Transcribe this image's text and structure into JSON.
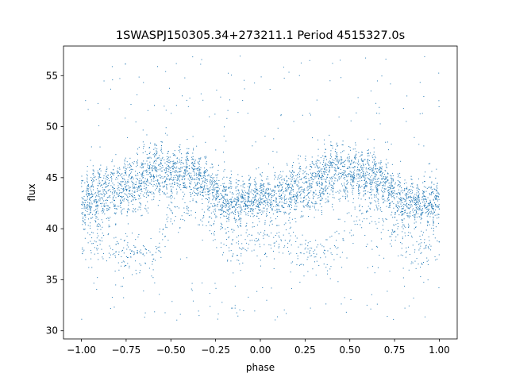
{
  "chart_data": {
    "type": "scatter",
    "title": "1SWASPJ150305.34+273211.1 Period 4515327.0s",
    "xlabel": "phase",
    "ylabel": "flux",
    "xlim": [
      -1.1,
      1.1
    ],
    "ylim": [
      29.2,
      57.9
    ],
    "x_ticks": [
      -1.0,
      -0.75,
      -0.5,
      -0.25,
      0.0,
      0.25,
      0.5,
      0.75,
      1.0
    ],
    "x_tick_labels": [
      "−1.00",
      "−0.75",
      "−0.50",
      "−0.25",
      "0.00",
      "0.25",
      "0.50",
      "0.75",
      "1.00"
    ],
    "y_ticks": [
      30,
      35,
      40,
      45,
      50,
      55
    ],
    "y_tick_labels": [
      "30",
      "35",
      "40",
      "45",
      "50",
      "55"
    ],
    "grid": false,
    "legend": "none",
    "point_color": "#1f77b4",
    "series": [
      {
        "description_of_trend": "phase-folded light curve, mirrored at phase 0",
        "envelope_upper": {
          "phase": [
            -1.0,
            -0.9,
            -0.8,
            -0.7,
            -0.6,
            -0.5,
            -0.4,
            -0.3,
            -0.2,
            -0.1,
            0.0,
            0.1,
            0.2,
            0.3,
            0.4,
            0.5,
            0.6,
            0.7,
            0.8,
            0.9,
            1.0
          ],
          "flux": [
            45.0,
            45.8,
            46.5,
            47.5,
            48.5,
            48.0,
            47.8,
            46.5,
            45.0,
            44.5,
            45.0,
            45.8,
            46.5,
            47.5,
            48.5,
            48.0,
            47.8,
            46.5,
            45.0,
            44.5,
            45.0
          ]
        },
        "envelope_center": {
          "phase": [
            -1.0,
            -0.9,
            -0.8,
            -0.7,
            -0.6,
            -0.5,
            -0.4,
            -0.3,
            -0.2,
            -0.1,
            0.0,
            0.1,
            0.2,
            0.3,
            0.4,
            0.5,
            0.6,
            0.7,
            0.8,
            0.9,
            1.0
          ],
          "flux": [
            42.5,
            43.2,
            43.8,
            44.5,
            45.5,
            45.5,
            45.6,
            44.5,
            42.5,
            42.5,
            43.0,
            43.2,
            43.8,
            44.5,
            45.5,
            45.5,
            45.6,
            44.5,
            42.5,
            42.5,
            42.5
          ]
        },
        "envelope_lower": {
          "phase": [
            -1.0,
            -0.9,
            -0.8,
            -0.7,
            -0.6,
            -0.5,
            -0.4,
            -0.3,
            -0.2,
            -0.1,
            0.0,
            0.1,
            0.2,
            0.3,
            0.4,
            0.5,
            0.6,
            0.7,
            0.8,
            0.9,
            1.0
          ],
          "flux": [
            38.5,
            39.0,
            38.0,
            37.5,
            37.0,
            41.0,
            42.0,
            41.5,
            38.5,
            38.0,
            38.5,
            39.0,
            38.0,
            37.5,
            37.0,
            41.0,
            42.0,
            41.5,
            38.5,
            38.0,
            38.5
          ]
        }
      }
    ]
  }
}
